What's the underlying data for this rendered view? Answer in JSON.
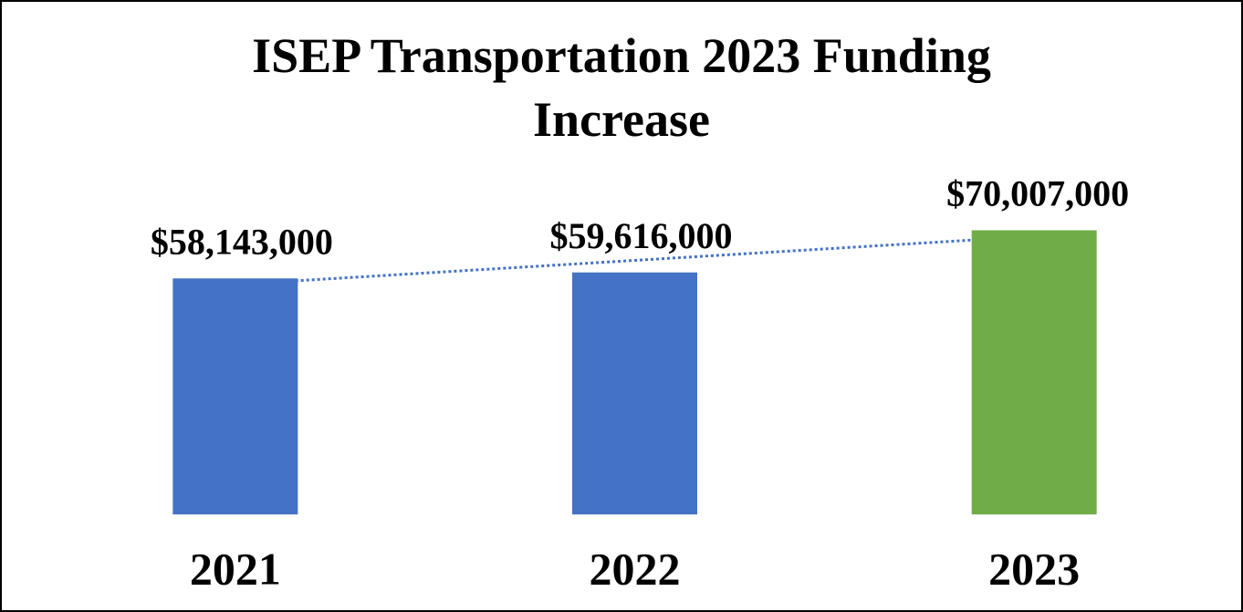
{
  "chart_data": {
    "type": "bar",
    "title": "ISEP Transportation 2023 Funding Increase",
    "categories": [
      "2021",
      "2022",
      "2023"
    ],
    "values": [
      58143000,
      59616000,
      70007000
    ],
    "value_labels": [
      "$58,143,000",
      "$59,616,000",
      "$70,007,000"
    ],
    "colors": [
      "#4472c4",
      "#4472c4",
      "#70ad47"
    ],
    "ylim": [
      0,
      80000000
    ],
    "trendline": {
      "color": "#4472c4",
      "style": "dotted"
    }
  }
}
